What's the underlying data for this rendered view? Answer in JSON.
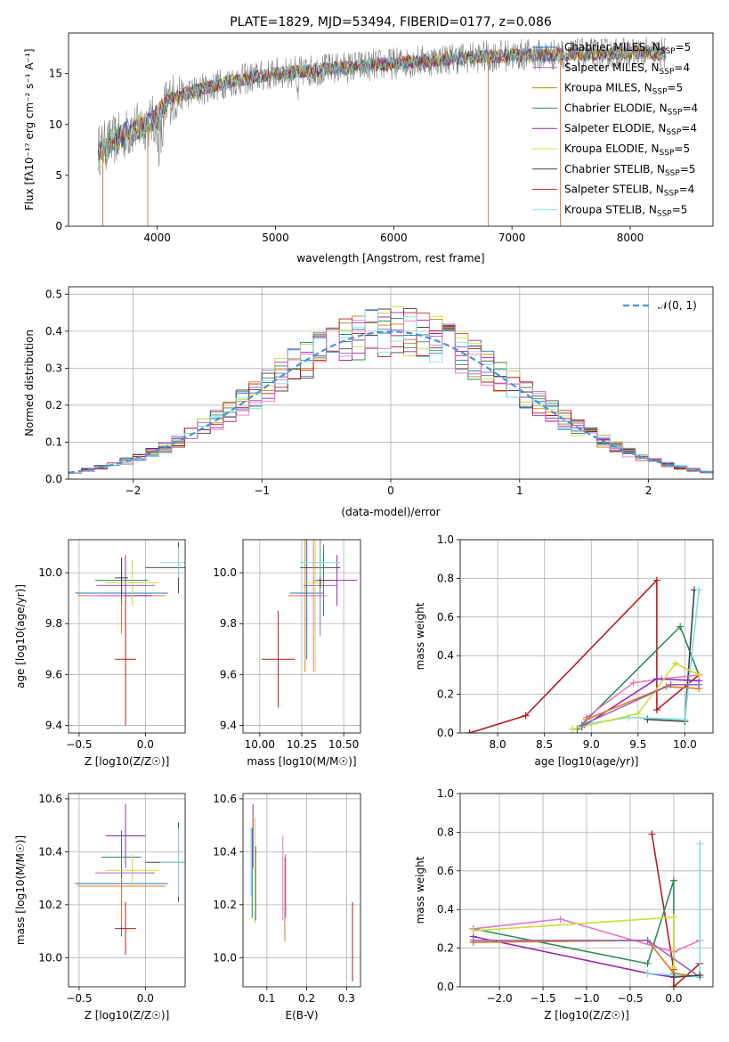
{
  "chart_data": [
    {
      "type": "line",
      "title": "PLATE=1829, MJD=53494, FIBERID=0177, z=0.086",
      "xlabel": "wavelength [Angstrom, rest frame]",
      "ylabel": "Flux [fλ10⁻¹⁷ erg cm⁻² s⁻¹ A⁻¹]",
      "xlim": [
        3250,
        8700
      ],
      "ylim": [
        0,
        19
      ],
      "xticks": [
        4000,
        5000,
        6000,
        7000,
        8000
      ],
      "yticks": [
        0,
        5,
        10,
        15
      ],
      "grid": false,
      "legend_position": "top-right",
      "series": [
        {
          "name": "Chabrier MILES, N_SSP=5",
          "label": "Chabrier MILES, N",
          "sub": "SSP",
          "suffix": "=5",
          "color": "#1f77b4"
        },
        {
          "name": "Salpeter MILES, N_SSP=4",
          "label": "Salpeter MILES, N",
          "sub": "SSP",
          "suffix": "=4",
          "color": "#9467bd"
        },
        {
          "name": "Kroupa MILES, N_SSP=5",
          "label": "Kroupa MILES, N",
          "sub": "SSP",
          "suffix": "=5",
          "color": "#b8860b"
        },
        {
          "name": "Chabrier ELODIE, N_SSP=4",
          "label": "Chabrier ELODIE, N",
          "sub": "SSP",
          "suffix": "=4",
          "color": "#2e8b57"
        },
        {
          "name": "Salpeter ELODIE, N_SSP=4",
          "label": "Salpeter ELODIE, N",
          "sub": "SSP",
          "suffix": "=4",
          "color": "#9c27b0"
        },
        {
          "name": "Kroupa ELODIE, N_SSP=5",
          "label": "Kroupa ELODIE, N",
          "sub": "SSP",
          "suffix": "=5",
          "color": "#cddc39"
        },
        {
          "name": "Chabrier STELIB, N_SSP=5",
          "label": "Chabrier STELIB, N",
          "sub": "SSP",
          "suffix": "=5",
          "color": "#444444"
        },
        {
          "name": "Salpeter STELIB, N_SSP=4",
          "label": "Salpeter STELIB, N",
          "sub": "SSP",
          "suffix": "=4",
          "color": "#b71c1c"
        },
        {
          "name": "Kroupa STELIB, N_SSP=5",
          "label": "Kroupa STELIB, N",
          "sub": "SSP",
          "suffix": "=5",
          "color": "#80deea"
        }
      ],
      "data_color": "#808080",
      "continuum": {
        "x": [
          3500,
          3800,
          4000,
          4100,
          4300,
          4600,
          5000,
          5500,
          6000,
          6500,
          7000,
          7500,
          8000,
          8300
        ],
        "y": [
          7.5,
          9.5,
          10.5,
          12.5,
          13.2,
          14.2,
          15.0,
          15.5,
          16.0,
          16.5,
          16.8,
          16.9,
          17.0,
          17.0
        ]
      },
      "spikes": [
        {
          "x": 3540,
          "y": 0
        },
        {
          "x": 3920,
          "y": 0
        },
        {
          "x": 6800,
          "y": 0
        },
        {
          "x": 7410,
          "y": 0
        }
      ]
    },
    {
      "type": "step",
      "xlabel": "(data-model)/error",
      "ylabel": "Normed distribution",
      "xlim": [
        -2.5,
        2.5
      ],
      "ylim": [
        0,
        0.52
      ],
      "xticks": [
        -2,
        -1,
        0,
        1,
        2
      ],
      "yticks": [
        0.0,
        0.1,
        0.2,
        0.3,
        0.4,
        0.5
      ],
      "grid": true,
      "legend_position": "top-right",
      "legend": [
        {
          "name": "𝒩(0, 1)",
          "color": "#4a90d9",
          "style": "dashed"
        }
      ],
      "bin_width": 0.1
    },
    {
      "type": "scatter",
      "xlabel": "Z [log10(Z/Z☉)]",
      "ylabel": "age [log10(age/yr)]",
      "xlim": [
        -0.58,
        0.3
      ],
      "ylim": [
        9.37,
        10.13
      ],
      "xticks": [
        -0.5,
        0.0
      ],
      "yticks": [
        9.4,
        9.6,
        9.8,
        10.0
      ],
      "grid": true,
      "points": [
        {
          "x": -0.18,
          "y": 9.92,
          "xerr": 0.35,
          "yerr": 0.13,
          "color": "#1f77b4"
        },
        {
          "x": -0.15,
          "y": 9.95,
          "xerr": 0.22,
          "yerr": 0.12,
          "color": "#9467bd"
        },
        {
          "x": -0.18,
          "y": 9.91,
          "xerr": 0.33,
          "yerr": 0.15,
          "color": "#e07b20"
        },
        {
          "x": -0.18,
          "y": 9.97,
          "xerr": 0.2,
          "yerr": 0.09,
          "color": "#2e8b57"
        },
        {
          "x": -0.15,
          "y": 9.91,
          "xerr": 0.2,
          "yerr": 0.16,
          "color": "#9c27b0"
        },
        {
          "x": -0.1,
          "y": 9.96,
          "xerr": 0.2,
          "yerr": 0.09,
          "color": "#cddc39"
        },
        {
          "x": -0.18,
          "y": 9.98,
          "xerr": 0.05,
          "yerr": 0.08,
          "color": "#444444"
        },
        {
          "x": 0.25,
          "y": 10.02,
          "xerr": 0.25,
          "yerr": 0.1,
          "color": "#444444"
        },
        {
          "x": 0.25,
          "y": 10.04,
          "xerr": 0.14,
          "yerr": 0.06,
          "color": "#80deea"
        },
        {
          "x": -0.15,
          "y": 9.66,
          "xerr": 0.08,
          "yerr": 0.26,
          "color": "#b71c1c"
        },
        {
          "x": -0.3,
          "y": 9.91,
          "xerr": 0.15,
          "yerr": 0.0,
          "color": "#e377c2"
        }
      ]
    },
    {
      "type": "scatter",
      "xlabel": "mass [log10(M/M☉)]",
      "ylabel": "",
      "xlim": [
        9.9,
        10.6
      ],
      "ylim": [
        9.37,
        10.13
      ],
      "xticks": [
        10.0,
        10.25,
        10.5
      ],
      "yticks": [
        9.4,
        9.6,
        9.8,
        10.0
      ],
      "grid": true,
      "points": [
        {
          "x": 10.28,
          "y": 9.92,
          "xerr": 0.1,
          "yerr": 0.26,
          "color": "#1f77b4"
        },
        {
          "x": 10.36,
          "y": 9.95,
          "xerr": 0.1,
          "yerr": 0.2,
          "color": "#9467bd"
        },
        {
          "x": 10.27,
          "y": 9.91,
          "xerr": 0.1,
          "yerr": 0.3,
          "color": "#e07b20"
        },
        {
          "x": 10.38,
          "y": 9.97,
          "xerr": 0.06,
          "yerr": 0.14,
          "color": "#2e8b57"
        },
        {
          "x": 10.46,
          "y": 9.97,
          "xerr": 0.12,
          "yerr": 0.1,
          "color": "#9c27b0"
        },
        {
          "x": 10.33,
          "y": 9.96,
          "xerr": 0.06,
          "yerr": 0.35,
          "color": "#cddc39"
        },
        {
          "x": 10.36,
          "y": 10.02,
          "xerr": 0.12,
          "yerr": 0.08,
          "color": "#444444"
        },
        {
          "x": 10.36,
          "y": 10.04,
          "xerr": 0.12,
          "yerr": 0.06,
          "color": "#80deea"
        },
        {
          "x": 10.11,
          "y": 9.66,
          "xerr": 0.1,
          "yerr": 0.19,
          "color": "#b71c1c"
        },
        {
          "x": 10.32,
          "y": 9.91,
          "xerr": 0.08,
          "yerr": 0.3,
          "color": "#e377c2"
        }
      ]
    },
    {
      "type": "line",
      "xlabel": "age [log10(age/yr)]",
      "ylabel": "mass weight",
      "xlim": [
        7.6,
        10.3
      ],
      "ylim": [
        0.0,
        1.0
      ],
      "xticks": [
        8.0,
        8.5,
        9.0,
        9.5,
        10.0
      ],
      "yticks": [
        0.0,
        0.2,
        0.4,
        0.6,
        0.8,
        1.0
      ],
      "grid": true,
      "series": [
        {
          "color": "#b71c1c",
          "x": [
            7.7,
            8.3,
            9.7,
            9.7,
            10.15
          ],
          "y": [
            0.0,
            0.09,
            0.79,
            0.12,
            0.3
          ]
        },
        {
          "color": "#2e8b57",
          "x": [
            8.85,
            9.95,
            10.15
          ],
          "y": [
            0.02,
            0.55,
            0.3
          ]
        },
        {
          "color": "#444444",
          "x": [
            9.6,
            10.0,
            10.1
          ],
          "y": [
            0.07,
            0.06,
            0.74
          ]
        },
        {
          "color": "#80deea",
          "x": [
            9.0,
            9.4,
            10.0,
            10.15
          ],
          "y": [
            0.05,
            0.08,
            0.07,
            0.74
          ]
        },
        {
          "color": "#e377c2",
          "x": [
            8.95,
            9.45,
            9.75,
            10.15
          ],
          "y": [
            0.08,
            0.26,
            0.28,
            0.3
          ]
        },
        {
          "color": "#9c27b0",
          "x": [
            8.9,
            9.7,
            10.15
          ],
          "y": [
            0.03,
            0.28,
            0.27
          ]
        },
        {
          "color": "#cddc39",
          "x": [
            8.8,
            9.5,
            9.9,
            10.15
          ],
          "y": [
            0.02,
            0.1,
            0.36,
            0.3
          ]
        },
        {
          "color": "#e07b20",
          "x": [
            8.95,
            9.8,
            10.15
          ],
          "y": [
            0.07,
            0.24,
            0.23
          ]
        },
        {
          "color": "#9467bd",
          "x": [
            8.9,
            9.85,
            10.15
          ],
          "y": [
            0.04,
            0.25,
            0.25
          ]
        }
      ]
    },
    {
      "type": "scatter",
      "xlabel": "Z [log10(Z/Z☉)]",
      "ylabel": "mass [log10(M/M☉)]",
      "xlim": [
        -0.58,
        0.3
      ],
      "ylim": [
        9.89,
        10.62
      ],
      "xticks": [
        -0.5,
        0.0
      ],
      "yticks": [
        10.0,
        10.2,
        10.4,
        10.6
      ],
      "grid": true,
      "points": [
        {
          "x": -0.18,
          "y": 10.28,
          "xerr": 0.35,
          "yerr": 0.2,
          "color": "#1f77b4"
        },
        {
          "x": -0.15,
          "y": 10.32,
          "xerr": 0.22,
          "yerr": 0.0,
          "color": "#9467bd"
        },
        {
          "x": -0.18,
          "y": 10.27,
          "xerr": 0.33,
          "yerr": 0.15,
          "color": "#e07b20"
        },
        {
          "x": -0.18,
          "y": 10.38,
          "xerr": 0.15,
          "yerr": 0.08,
          "color": "#2e8b57"
        },
        {
          "x": -0.15,
          "y": 10.46,
          "xerr": 0.15,
          "yerr": 0.12,
          "color": "#9c27b0"
        },
        {
          "x": -0.1,
          "y": 10.33,
          "xerr": 0.2,
          "yerr": 0.06,
          "color": "#cddc39"
        },
        {
          "x": 0.25,
          "y": 10.36,
          "xerr": 0.25,
          "yerr": 0.15,
          "color": "#444444"
        },
        {
          "x": 0.25,
          "y": 10.36,
          "xerr": 0.14,
          "yerr": 0.13,
          "color": "#80deea"
        },
        {
          "x": -0.15,
          "y": 10.11,
          "xerr": 0.08,
          "yerr": 0.1,
          "color": "#b71c1c"
        },
        {
          "x": -0.2,
          "y": 10.32,
          "xerr": 0.18,
          "yerr": 0.0,
          "color": "#e377c2"
        }
      ]
    },
    {
      "type": "scatter",
      "xlabel": "E(B-V)",
      "ylabel": "",
      "xlim": [
        0.04,
        0.335
      ],
      "ylim": [
        9.89,
        10.62
      ],
      "xticks": [
        0.1,
        0.2,
        0.3
      ],
      "yticks": [
        10.0,
        10.2,
        10.4,
        10.6
      ],
      "grid": true,
      "points": [
        {
          "x": 0.06,
          "y": 10.36,
          "yerr": 0.13,
          "color": "#80deea"
        },
        {
          "x": 0.063,
          "y": 10.32,
          "yerr": 0.17,
          "color": "#1f77b4"
        },
        {
          "x": 0.065,
          "y": 10.46,
          "yerr": 0.12,
          "color": "#9c27b0"
        },
        {
          "x": 0.07,
          "y": 10.33,
          "yerr": 0.2,
          "color": "#cddc39"
        },
        {
          "x": 0.072,
          "y": 10.28,
          "yerr": 0.14,
          "color": "#2e8b57"
        },
        {
          "x": 0.14,
          "y": 10.3,
          "yerr": 0.16,
          "color": "#e377c2"
        },
        {
          "x": 0.145,
          "y": 10.22,
          "yerr": 0.16,
          "color": "#e07b20"
        },
        {
          "x": 0.147,
          "y": 10.27,
          "yerr": 0.12,
          "color": "#9467bd"
        },
        {
          "x": 0.315,
          "y": 10.06,
          "yerr": 0.15,
          "color": "#b71c1c"
        }
      ]
    },
    {
      "type": "line",
      "xlabel": "Z [log10(Z/Z☉)]",
      "ylabel": "mass weight",
      "xlim": [
        -2.45,
        0.45
      ],
      "ylim": [
        0.0,
        1.0
      ],
      "xticks": [
        -2.0,
        -1.5,
        -1.0,
        -0.5,
        0.0
      ],
      "yticks": [
        0.0,
        0.2,
        0.4,
        0.6,
        0.8,
        1.0
      ],
      "grid": true,
      "series": [
        {
          "color": "#b71c1c",
          "x": [
            -0.25,
            0.0,
            0.0,
            0.3
          ],
          "y": [
            0.79,
            0.09,
            0.0,
            0.12
          ]
        },
        {
          "color": "#2e8b57",
          "x": [
            -2.3,
            -0.3,
            0.0,
            0.0
          ],
          "y": [
            0.3,
            0.12,
            0.55,
            0.05
          ]
        },
        {
          "color": "#9c27b0",
          "x": [
            -2.3,
            -0.3,
            0.0
          ],
          "y": [
            0.26,
            0.07,
            0.05
          ]
        },
        {
          "color": "#e377c2",
          "x": [
            -2.3,
            -1.3,
            0.0,
            0.3
          ],
          "y": [
            0.3,
            0.35,
            0.18,
            0.24
          ]
        },
        {
          "color": "#cddc39",
          "x": [
            -2.3,
            0.0,
            0.0
          ],
          "y": [
            0.29,
            0.36,
            0.1
          ]
        },
        {
          "color": "#e07b20",
          "x": [
            -2.3,
            -0.3,
            0.0,
            0.3
          ],
          "y": [
            0.23,
            0.24,
            0.07,
            0.05
          ]
        },
        {
          "color": "#9467bd",
          "x": [
            -2.3,
            -0.3,
            0.3
          ],
          "y": [
            0.24,
            0.24,
            0.05
          ]
        },
        {
          "color": "#80deea",
          "x": [
            -0.3,
            0.3,
            0.3
          ],
          "y": [
            0.07,
            0.05,
            0.74
          ]
        },
        {
          "color": "#444444",
          "x": [
            0.0,
            0.3
          ],
          "y": [
            0.05,
            0.06
          ]
        }
      ]
    }
  ]
}
